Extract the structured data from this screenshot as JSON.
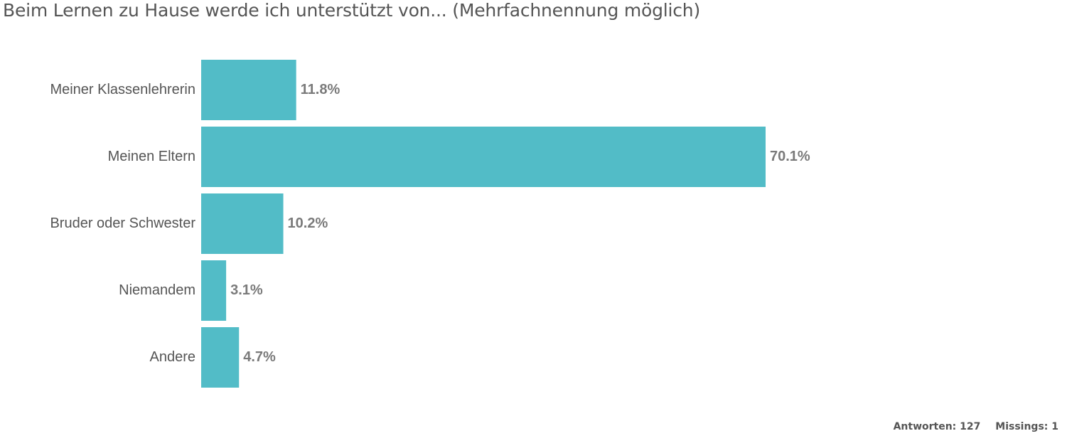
{
  "chart_data": {
    "type": "bar",
    "orientation": "horizontal",
    "title": "Beim Lernen zu Hause werde ich unterstützt von... (Mehrfachnennung möglich)",
    "categories": [
      "Meiner Klassenlehrerin",
      "Meinen Eltern",
      "Bruder oder Schwester",
      "Niemandem",
      "Andere"
    ],
    "values": [
      11.8,
      70.1,
      10.2,
      3.1,
      4.7
    ],
    "value_labels": [
      "11.8%",
      "70.1%",
      "10.2%",
      "3.1%",
      "4.7%"
    ],
    "unit": "%",
    "grid": false,
    "bar_color": "#52bcc7"
  },
  "footer": {
    "responses": "Antworten: 127",
    "missings": "Missings: 1"
  }
}
